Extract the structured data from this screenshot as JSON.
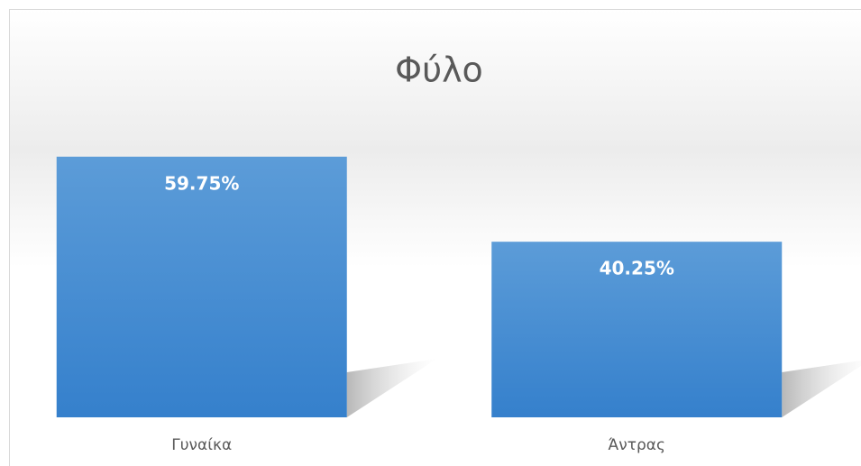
{
  "chart_data": {
    "type": "bar",
    "title": "Φύλο",
    "categories": [
      "Γυναίκα",
      "Άντρας"
    ],
    "values": [
      59.75,
      40.25
    ],
    "value_labels": [
      "59.75%",
      "40.25%"
    ],
    "color": "#4a8fd3"
  }
}
